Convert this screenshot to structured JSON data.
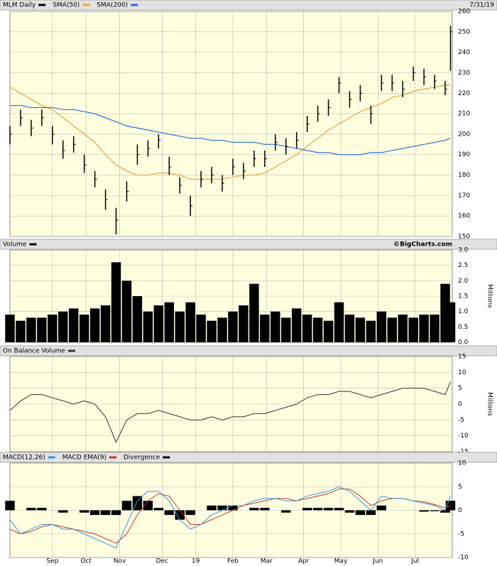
{
  "chart_data": [
    {
      "type": "ohlc",
      "title": "MLM Daily",
      "date": "7/31/19",
      "color": "#000000",
      "x": [
        0,
        6,
        12,
        18,
        24,
        30,
        36,
        42,
        48,
        54,
        60,
        66,
        72,
        78,
        84,
        90,
        96,
        102,
        108,
        114,
        120,
        126,
        132,
        138,
        144,
        150,
        156,
        162,
        168,
        174,
        180,
        186,
        192,
        198,
        204,
        210,
        216,
        222,
        228,
        234,
        240,
        246,
        249
      ],
      "xlim": [
        0,
        250
      ],
      "high": [
        204,
        212,
        207,
        212,
        204,
        197,
        199,
        190,
        182,
        173,
        164,
        177,
        195,
        197,
        200,
        189,
        179,
        170,
        182,
        184,
        180,
        188,
        186,
        192,
        192,
        200,
        198,
        201,
        209,
        214,
        217,
        228,
        221,
        224,
        214,
        229,
        229,
        226,
        233,
        232,
        229,
        226,
        253
      ],
      "low": [
        195,
        204,
        199,
        204,
        195,
        188,
        191,
        181,
        174,
        163,
        151,
        167,
        185,
        189,
        193,
        180,
        171,
        160,
        174,
        176,
        172,
        180,
        178,
        184,
        184,
        192,
        190,
        193,
        201,
        206,
        209,
        220,
        213,
        216,
        205,
        221,
        221,
        218,
        226,
        224,
        222,
        219,
        231
      ],
      "close": [
        200,
        208,
        203,
        208,
        200,
        192,
        195,
        185,
        178,
        168,
        158,
        172,
        190,
        193,
        197,
        184,
        175,
        165,
        178,
        180,
        176,
        184,
        182,
        188,
        188,
        196,
        194,
        197,
        205,
        210,
        213,
        225,
        217,
        220,
        210,
        225,
        225,
        222,
        230,
        228,
        226,
        222,
        250
      ],
      "series": [
        {
          "name": "SMA(50)",
          "color": "#e8a33c",
          "values": [
            223,
            220,
            217,
            214,
            212,
            208,
            204,
            200,
            196,
            190,
            185,
            182,
            180,
            180,
            181,
            181,
            180,
            178,
            178,
            178,
            178,
            179,
            180,
            180,
            181,
            184,
            187,
            190,
            194,
            198,
            202,
            205,
            208,
            211,
            213,
            215,
            218,
            219,
            221,
            222,
            223,
            224,
            224
          ]
        },
        {
          "name": "SMA(200)",
          "color": "#2a6fd6",
          "values": [
            214,
            214,
            213,
            213,
            213,
            212,
            212,
            211,
            210,
            208,
            206,
            204,
            203,
            202,
            201,
            200,
            199,
            198,
            198,
            197,
            197,
            196,
            196,
            196,
            195,
            195,
            194,
            193,
            192,
            191,
            191,
            190,
            190,
            190,
            191,
            191,
            192,
            193,
            194,
            195,
            196,
            197,
            198
          ]
        }
      ],
      "ylim": [
        150,
        260
      ],
      "yticks": [
        150,
        160,
        170,
        180,
        190,
        200,
        210,
        220,
        230,
        240,
        250,
        260
      ],
      "grid": true
    },
    {
      "type": "volume",
      "title": "Volume",
      "credit": "©BigCharts.com",
      "color": "#000000",
      "ylabel": "Millions",
      "values": [
        0.9,
        0.7,
        0.8,
        0.8,
        0.9,
        1.0,
        1.1,
        0.9,
        1.1,
        1.2,
        2.6,
        2.0,
        1.5,
        1.0,
        1.2,
        1.3,
        1.0,
        1.3,
        0.9,
        0.7,
        0.8,
        1.0,
        1.2,
        1.9,
        0.9,
        1.0,
        0.8,
        1.1,
        0.9,
        0.8,
        0.7,
        1.3,
        0.9,
        0.8,
        0.7,
        1.0,
        0.8,
        0.9,
        0.8,
        0.9,
        0.9,
        1.9,
        1.3
      ],
      "ylim": [
        0,
        3
      ],
      "yticks": [
        {
          "value": 0,
          "label": "0.0"
        },
        0.5,
        {
          "value": 1,
          "label": "1.0"
        },
        1.5,
        {
          "value": 2,
          "label": "2.0"
        },
        2.5,
        {
          "value": 3,
          "label": "3.0"
        }
      ],
      "grid": true
    },
    {
      "type": "line",
      "title": "On Balance Volume",
      "color": "#333333",
      "ylabel": "Millions",
      "values": [
        -2,
        1,
        3,
        3,
        2,
        1,
        0,
        1,
        0,
        -4,
        -12,
        -5,
        -3,
        -3,
        -2,
        -3,
        -4,
        -5,
        -5,
        -4,
        -5,
        -4,
        -4,
        -3,
        -3,
        -2,
        -1,
        0,
        2,
        3,
        3,
        4,
        4,
        3,
        2,
        3,
        4,
        5,
        5,
        5,
        4,
        3,
        7
      ],
      "ylim": [
        -15,
        15
      ],
      "yticks": [
        -15,
        -10,
        -5,
        0,
        5,
        10,
        15
      ],
      "grid": true
    },
    {
      "type": "macd",
      "series": [
        {
          "name": "MACD(12,26)",
          "color": "#3b8fe0",
          "values": [
            -2,
            -5,
            -4,
            -3,
            -3,
            -4,
            -4,
            -5,
            -6,
            -7,
            -8,
            -3,
            2,
            4,
            4,
            2,
            -2,
            -4,
            -3,
            -1,
            0,
            1,
            1,
            2,
            2.5,
            2.5,
            2,
            2,
            3,
            3.5,
            4,
            5,
            4,
            2,
            0,
            3,
            2.5,
            2.5,
            2,
            1.5,
            1,
            0,
            3
          ]
        },
        {
          "name": "MACD EMA(9)",
          "color": "#c0392b",
          "values": [
            -4,
            -5,
            -4.5,
            -3.5,
            -3,
            -3.5,
            -4,
            -4.5,
            -5,
            -6,
            -7,
            -5,
            -1,
            2,
            3.5,
            3,
            0,
            -3,
            -3,
            -2,
            -1,
            0,
            1,
            1.5,
            2,
            2.5,
            2.5,
            2,
            2.5,
            3,
            3.5,
            4.5,
            4.5,
            3,
            1,
            2,
            2.5,
            2.5,
            2,
            1.8,
            1.2,
            0.5,
            1
          ]
        },
        {
          "name": "Divergence",
          "color": "#000000",
          "values": [
            2,
            0,
            0.5,
            0.5,
            0,
            -0.5,
            0,
            -0.5,
            -1,
            -1,
            -1,
            2,
            3,
            2,
            0.5,
            -1,
            -2,
            -1,
            0,
            1,
            1,
            1,
            0,
            0.5,
            0.5,
            0,
            -0.5,
            0,
            0.5,
            0.5,
            0.5,
            0.5,
            -0.5,
            -1,
            -1,
            1,
            0,
            0,
            0,
            -0.3,
            -0.2,
            -0.5,
            2
          ]
        }
      ],
      "ylim": [
        -10,
        10
      ],
      "yticks": [
        -10,
        -5,
        0,
        5,
        10
      ],
      "grid": true,
      "xticks": [
        {
          "value": 24,
          "label": "Sep"
        },
        {
          "value": 43,
          "label": "Oct"
        },
        {
          "value": 62,
          "label": "Nov"
        },
        {
          "value": 86,
          "label": "Dec"
        },
        {
          "value": 105,
          "label": "19"
        },
        {
          "value": 126,
          "label": "Feb"
        },
        {
          "value": 145,
          "label": "Mar"
        },
        {
          "value": 166,
          "label": "Apr"
        },
        {
          "value": 187,
          "label": "May"
        },
        {
          "value": 208,
          "label": "Jun"
        },
        {
          "value": 229,
          "label": "Jul"
        }
      ]
    }
  ]
}
